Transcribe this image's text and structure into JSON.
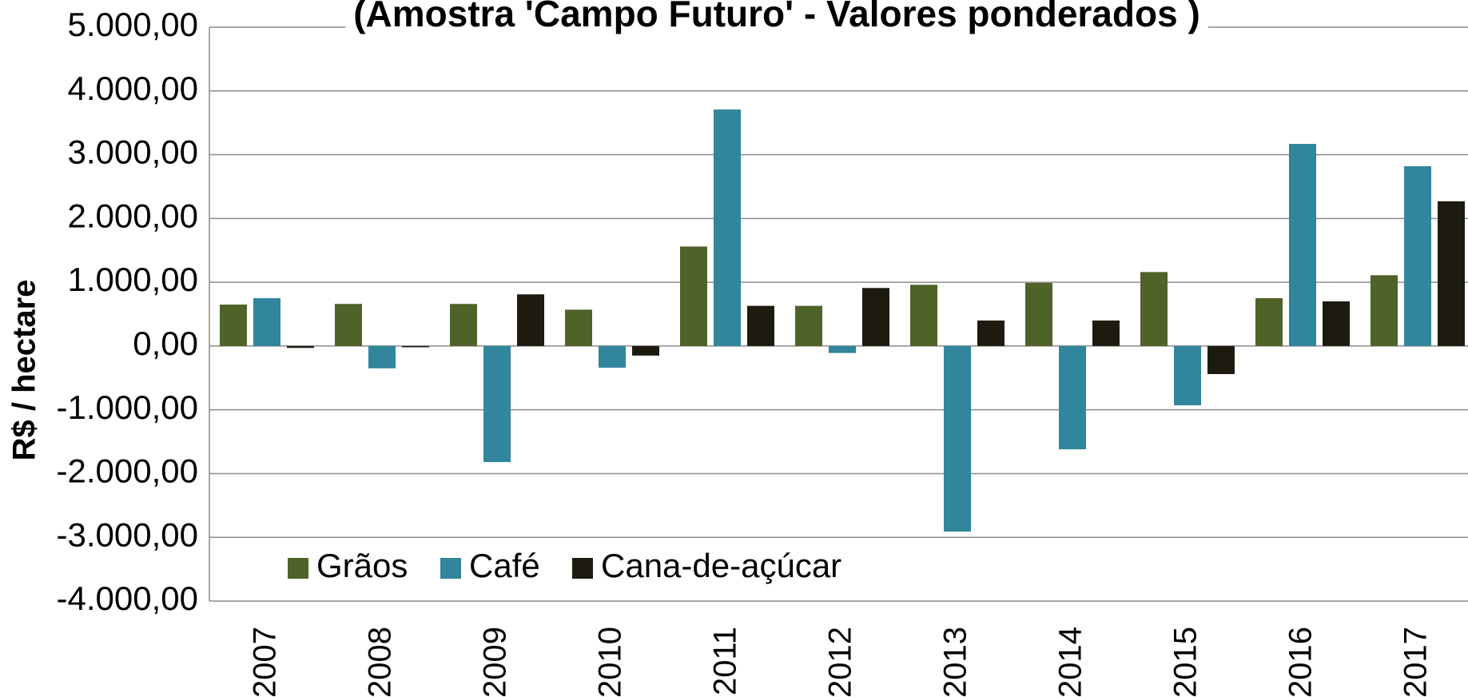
{
  "chart_data": {
    "type": "bar",
    "title": "(Amostra 'Campo Futuro' - Valores ponderados )",
    "y_label": "R$ / hectare",
    "categories": [
      "2007",
      "2008",
      "2009",
      "2010",
      "2011",
      "2012",
      "2013",
      "2014",
      "2015",
      "2016",
      "2017"
    ],
    "series": [
      {
        "name": "Grãos",
        "color": "#4f6228",
        "values": [
          650,
          660,
          660,
          570,
          1560,
          630,
          960,
          990,
          1160,
          750,
          1110
        ]
      },
      {
        "name": "Café",
        "color": "#31859c",
        "values": [
          750,
          -350,
          -1820,
          -340,
          3710,
          -110,
          -2910,
          -1620,
          -930,
          3170,
          2820
        ]
      },
      {
        "name": "Cana-de-açúcar",
        "color": "#1d1b10",
        "values": [
          -30,
          -20,
          810,
          -150,
          630,
          910,
          400,
          400,
          -440,
          700,
          2270
        ]
      }
    ],
    "ylim": [
      -4000,
      5000
    ],
    "yticks": [
      {
        "value": -4000,
        "label": "-4.000,00"
      },
      {
        "value": -3000,
        "label": "-3.000,00"
      },
      {
        "value": -2000,
        "label": "-2.000,00"
      },
      {
        "value": -1000,
        "label": "-1.000,00"
      },
      {
        "value": 0,
        "label": "0,00"
      },
      {
        "value": 1000,
        "label": "1.000,00"
      },
      {
        "value": 2000,
        "label": "2.000,00"
      },
      {
        "value": 3000,
        "label": "3.000,00"
      },
      {
        "value": 4000,
        "label": "4.000,00"
      },
      {
        "value": 5000,
        "label": "5.000,00"
      }
    ],
    "grid": true,
    "legend": "bottom-left"
  }
}
